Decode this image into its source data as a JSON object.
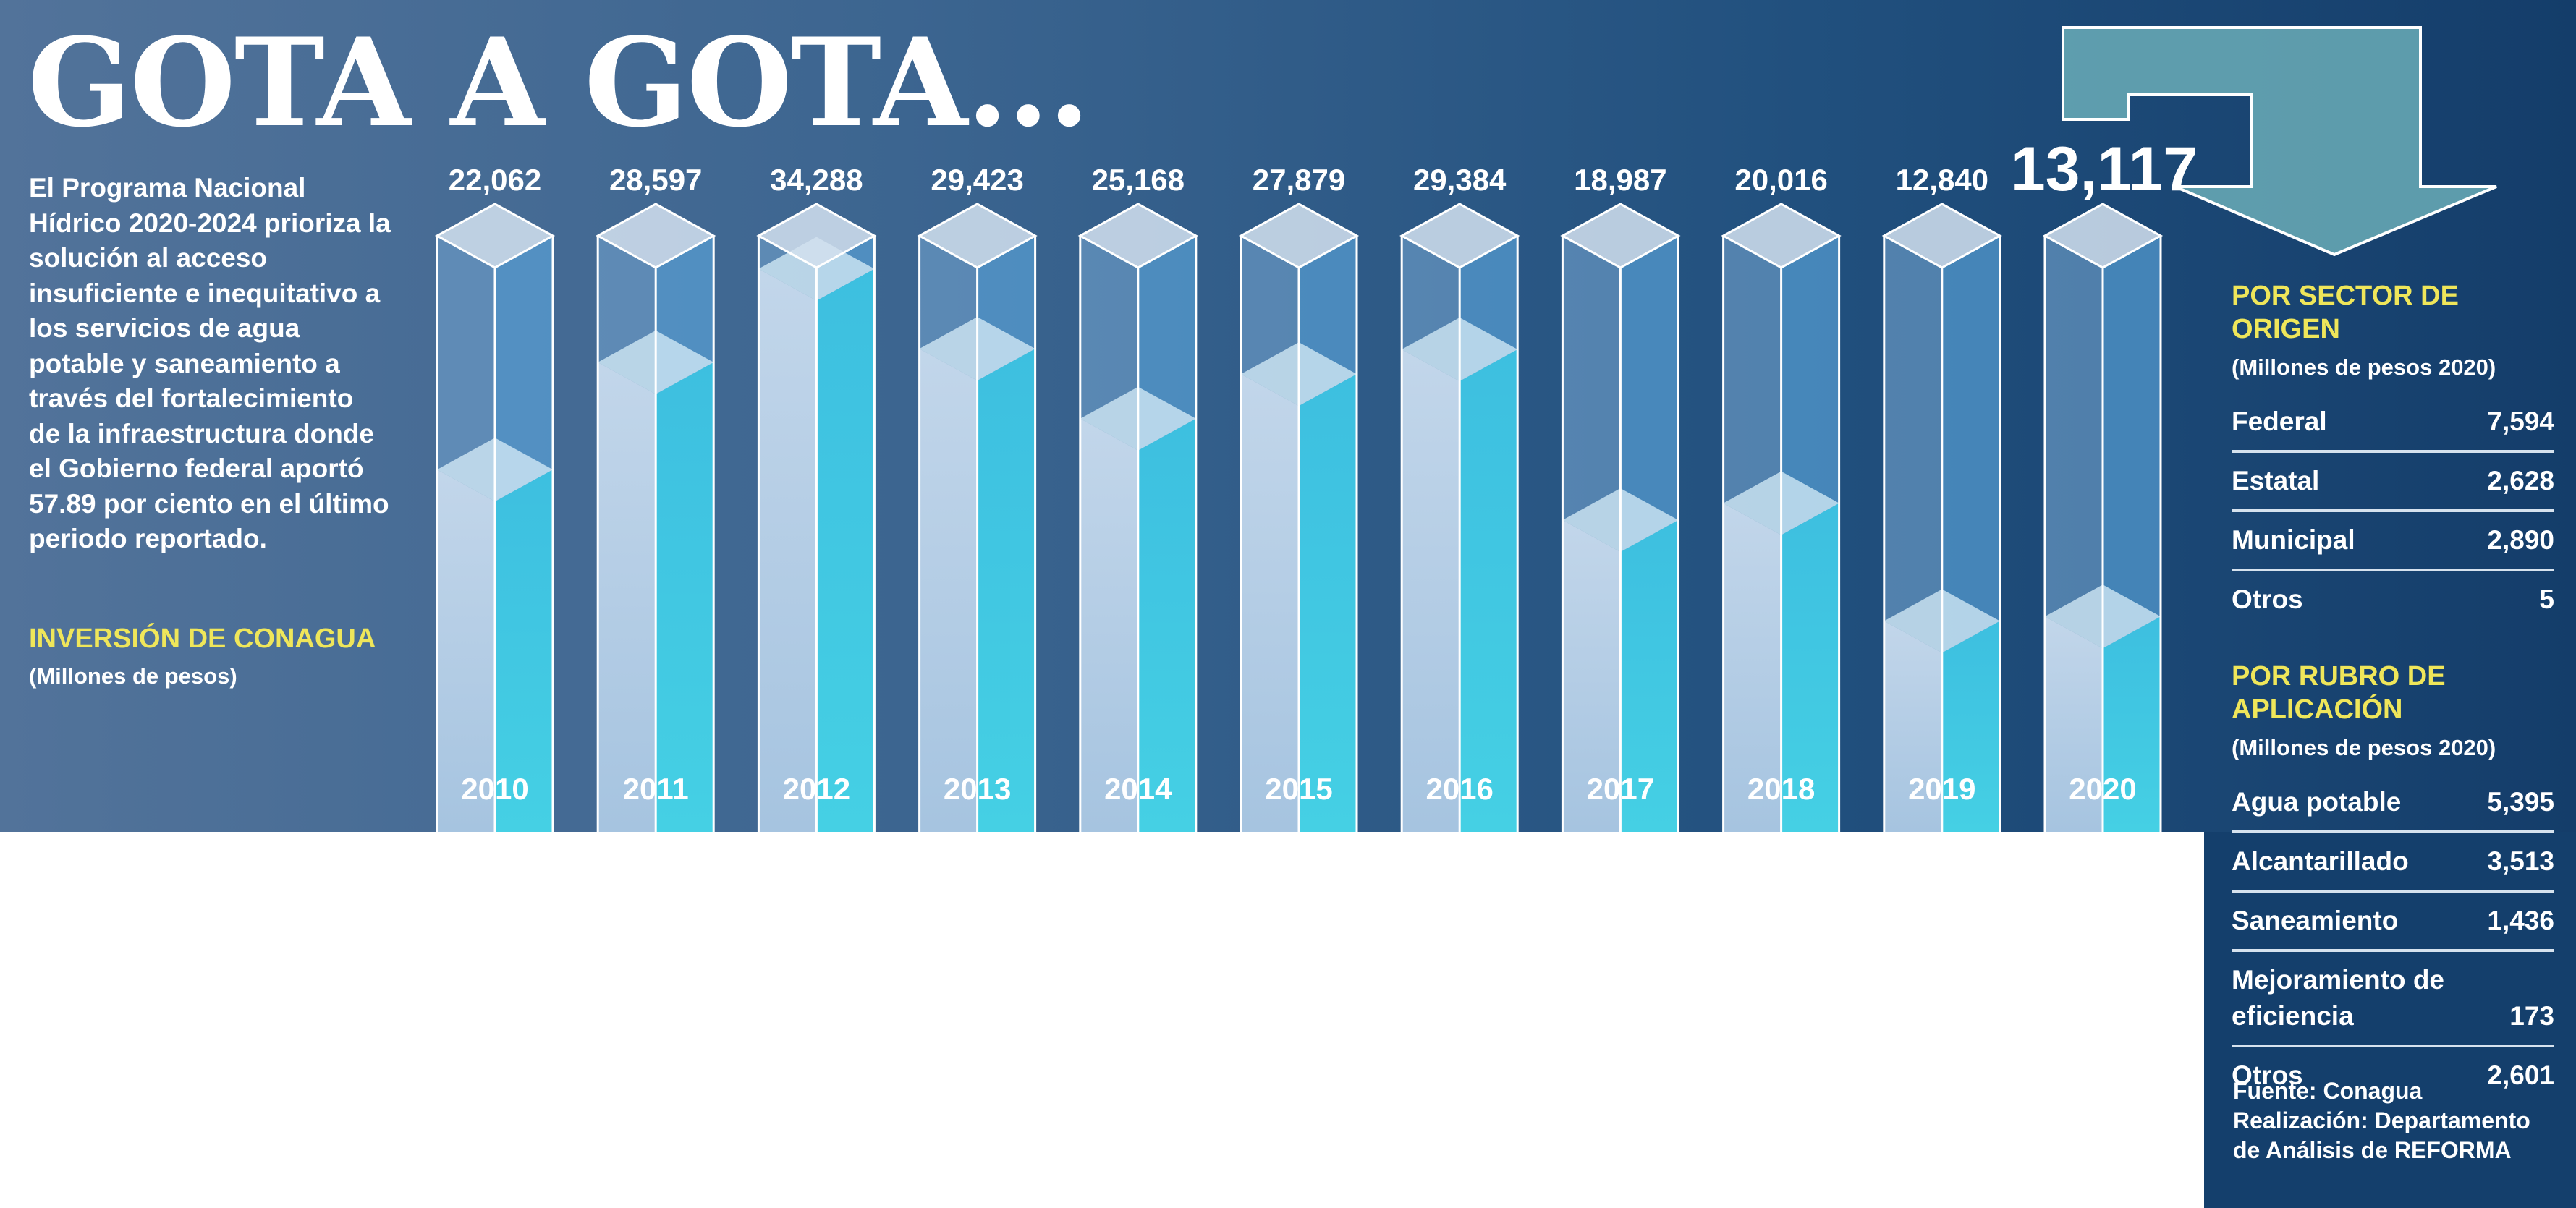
{
  "title": "GOTA A GOTA...",
  "intro": "El Programa Nacional Hídrico 2020-2024 prioriza la solución al acceso insuficiente e inequitativo a los servicios de agua potable y saneamiento a través del fortalecimiento de la infraestructura donde el Gobierno federal aportó 57.89 por ciento en el último periodo reportado.",
  "chart_data": {
    "type": "bar",
    "title": "INVERSIÓN DE CONAGUA",
    "subtitle": "(Millones de pesos)",
    "categories": [
      "2010",
      "2011",
      "2012",
      "2013",
      "2014",
      "2015",
      "2016",
      "2017",
      "2018",
      "2019",
      "2020"
    ],
    "values": [
      22062,
      28597,
      34288,
      29423,
      25168,
      27879,
      29384,
      18987,
      20016,
      12840,
      13117
    ],
    "value_labels": [
      "22,062",
      "28,597",
      "34,288",
      "29,423",
      "25,168",
      "27,879",
      "29,384",
      "18,987",
      "20,016",
      "12,840",
      "13,117"
    ],
    "highlight_category": "2020",
    "ylim": [
      0,
      36300
    ],
    "grid": false,
    "legend": "none"
  },
  "colors": {
    "fill_front": "#bfd5ea",
    "fill_side": "#3cc8e0",
    "tube_front": "#6d9dc8",
    "tube_side": "#5aa5da",
    "accent_yellow": "#efe65a",
    "arrow": "#6fb3bb"
  },
  "icons": {
    "arrow": "down-turn-arrow-icon"
  },
  "por_sector": {
    "heading": "POR SECTOR DE ORIGEN",
    "subheading": "(Millones de pesos 2020)",
    "items": [
      {
        "label": "Federal",
        "value": "7,594"
      },
      {
        "label": "Estatal",
        "value": "2,628"
      },
      {
        "label": "Municipal",
        "value": "2,890"
      },
      {
        "label": "Otros",
        "value": "5"
      }
    ]
  },
  "por_rubro": {
    "heading": "POR RUBRO DE APLICACIÓN",
    "subheading": "(Millones de pesos 2020)",
    "items": [
      {
        "label": "Agua potable",
        "value": "5,395"
      },
      {
        "label": "Alcantarillado",
        "value": "3,513"
      },
      {
        "label": "Saneamiento",
        "value": "1,436"
      },
      {
        "label": "Mejoramiento de eficiencia",
        "value": "173"
      },
      {
        "label": "Otros",
        "value": "2,601"
      }
    ]
  },
  "credits": {
    "source": "Fuente: Conagua",
    "production": "Realización: Departamento de Análisis de REFORMA"
  }
}
